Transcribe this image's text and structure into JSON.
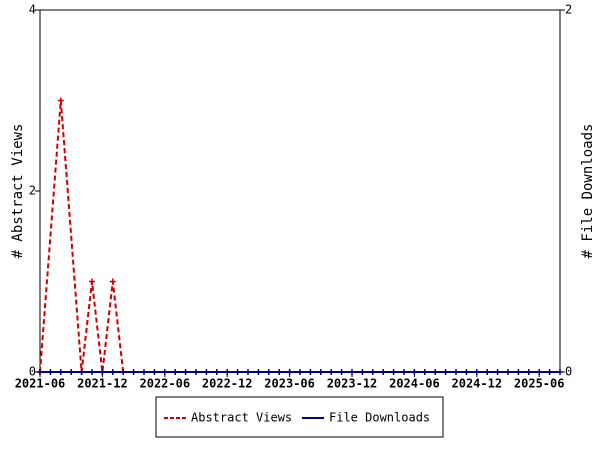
{
  "chart_data": {
    "type": "line",
    "ylabel": "# Abstract Views",
    "y2label": "# File Downloads",
    "xlim": [
      "2021-06",
      "2025-08"
    ],
    "xticks": [
      "2021-06",
      "2021-12",
      "2022-06",
      "2022-12",
      "2023-06",
      "2023-12",
      "2024-06",
      "2024-12",
      "2025-06"
    ],
    "ylim": [
      0,
      4
    ],
    "yticks": [
      0,
      2,
      4
    ],
    "y2lim": [
      0,
      2
    ],
    "y2ticks": [
      0,
      2
    ],
    "legend": "bottom",
    "series": [
      {
        "name": "Abstract Views",
        "color": "#cc0000",
        "dash": true,
        "x": [
          "2021-06",
          "2021-08",
          "2021-10",
          "2021-11",
          "2021-12",
          "2022-01",
          "2022-02"
        ],
        "values": [
          0,
          3,
          0,
          1,
          0,
          1,
          0
        ]
      },
      {
        "name": "File Downloads",
        "color": "#000099",
        "axis": "y2",
        "x": [
          "2021-06",
          "2021-07",
          "2021-08",
          "2021-09",
          "2021-10",
          "2021-11",
          "2021-12",
          "2022-01",
          "2022-02",
          "2022-03",
          "2022-04",
          "2022-05",
          "2022-06",
          "2022-07",
          "2022-08",
          "2022-09",
          "2022-10",
          "2022-11",
          "2022-12",
          "2023-01",
          "2023-02",
          "2023-03",
          "2023-04",
          "2023-05",
          "2023-06",
          "2023-07",
          "2023-08",
          "2023-09",
          "2023-10",
          "2023-11",
          "2023-12",
          "2024-01",
          "2024-02",
          "2024-03",
          "2024-04",
          "2024-05",
          "2024-06",
          "2024-07",
          "2024-08",
          "2024-09",
          "2024-10",
          "2024-11",
          "2024-12",
          "2025-01",
          "2025-02",
          "2025-03",
          "2025-04",
          "2025-05",
          "2025-06",
          "2025-07",
          "2025-08"
        ],
        "values": [
          0,
          0,
          0,
          0,
          0,
          0,
          0,
          0,
          0,
          0,
          0,
          0,
          0,
          0,
          0,
          0,
          0,
          0,
          0,
          0,
          0,
          0,
          0,
          0,
          0,
          0,
          0,
          0,
          0,
          0,
          0,
          0,
          0,
          0,
          0,
          0,
          0,
          0,
          0,
          0,
          0,
          0,
          0,
          0,
          0,
          0,
          0,
          0,
          0,
          0,
          0
        ]
      }
    ]
  }
}
